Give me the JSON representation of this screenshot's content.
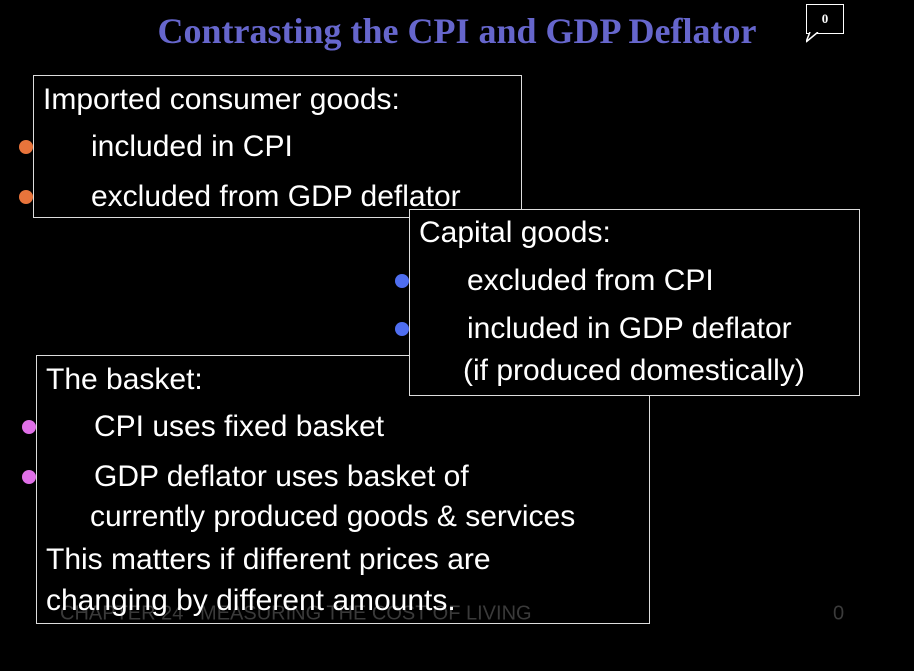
{
  "title": "Contrasting the CPI and GDP Deflator",
  "comment_count": "0",
  "boxes": [
    {
      "heading": "Imported consumer goods:",
      "lines": [
        "included in CPI",
        "excluded from GDP deflator"
      ]
    },
    {
      "heading": "The basket:",
      "lines": [
        "CPI uses fixed basket",
        "GDP deflator uses basket of"
      ],
      "continuation": "currently produced goods & services",
      "notes": [
        "This matters if different prices are",
        "changing by different amounts."
      ]
    },
    {
      "heading": "Capital goods:",
      "lines": [
        "excluded from CPI",
        "included in GDP deflator"
      ],
      "continuation": "(if produced domestically)"
    }
  ],
  "footer": {
    "chapter": "CHAPTER 24   MEASURING THE COST OF LIVING",
    "page": "0"
  }
}
